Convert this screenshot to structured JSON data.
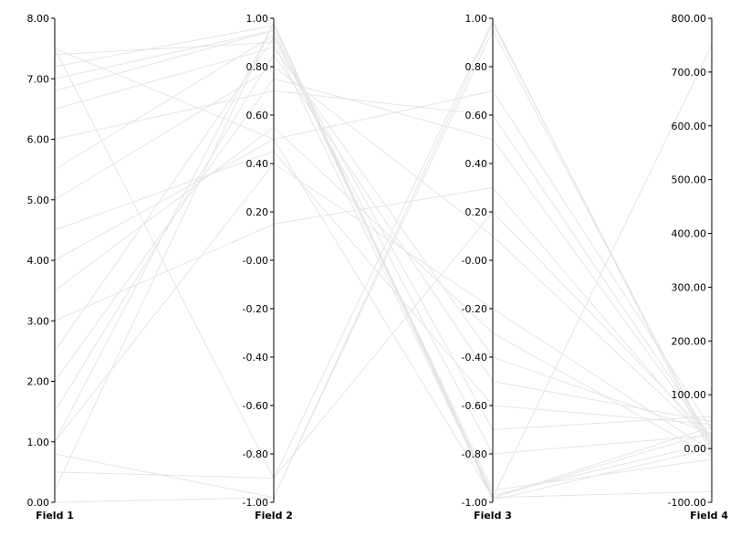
{
  "chart_data": {
    "type": "parallel-coordinates",
    "title": "",
    "line_color": "#e4e4e4",
    "axis_color": "#000000",
    "axes": [
      {
        "name": "Field 1",
        "range": [
          0,
          8
        ],
        "ticks": [
          "0.00",
          "1.00",
          "2.00",
          "3.00",
          "4.00",
          "5.00",
          "6.00",
          "7.00",
          "8.00"
        ]
      },
      {
        "name": "Field 2",
        "range": [
          -1,
          1
        ],
        "ticks": [
          "-1.00",
          "-0.80",
          "-0.60",
          "-0.40",
          "-0.20",
          "-0.00",
          "0.20",
          "0.40",
          "0.60",
          "0.80",
          "1.00"
        ]
      },
      {
        "name": "Field 3",
        "range": [
          -1,
          1
        ],
        "ticks": [
          "-1.00",
          "-0.80",
          "-0.60",
          "-0.40",
          "-0.20",
          "-0.00",
          "0.20",
          "0.40",
          "0.60",
          "0.80",
          "1.00"
        ]
      },
      {
        "name": "Field 4",
        "range": [
          -100,
          800
        ],
        "ticks": [
          "-100.00",
          "0.00",
          "100.00",
          "200.00",
          "300.00",
          "400.00",
          "500.00",
          "600.00",
          "700.00",
          "800.00"
        ]
      }
    ],
    "series": [
      {
        "values": [
          0.0,
          -0.98,
          0.98,
          0
        ]
      },
      {
        "values": [
          7.5,
          0.5,
          -0.98,
          750
        ]
      },
      {
        "values": [
          7.4,
          0.9,
          -0.98,
          -80
        ]
      },
      {
        "values": [
          0.5,
          -0.9,
          0.2,
          20
        ]
      },
      {
        "values": [
          7.0,
          0.95,
          -0.98,
          30
        ]
      },
      {
        "values": [
          0.2,
          0.98,
          -0.98,
          40
        ]
      },
      {
        "values": [
          7.2,
          0.97,
          -0.97,
          10
        ]
      },
      {
        "values": [
          1.0,
          0.98,
          -0.99,
          0
        ]
      },
      {
        "values": [
          6.8,
          0.95,
          -0.95,
          -20
        ]
      },
      {
        "values": [
          0.8,
          -0.98,
          0.95,
          5
        ]
      },
      {
        "values": [
          7.5,
          -0.9,
          0.99,
          -10
        ]
      },
      {
        "values": [
          1.0,
          0.4,
          -0.2,
          -5
        ]
      },
      {
        "values": [
          1.5,
          0.85,
          -0.5,
          50
        ]
      },
      {
        "values": [
          2.0,
          0.75,
          0.5,
          15
        ]
      },
      {
        "values": [
          2.5,
          0.92,
          -0.8,
          25
        ]
      },
      {
        "values": [
          3.0,
          0.15,
          0.3,
          8
        ]
      },
      {
        "values": [
          3.5,
          0.55,
          -0.3,
          -15
        ]
      },
      {
        "values": [
          4.0,
          0.5,
          0.7,
          35
        ]
      },
      {
        "values": [
          4.5,
          0.45,
          -0.6,
          45
        ]
      },
      {
        "values": [
          5.0,
          0.8,
          0.1,
          12
        ]
      },
      {
        "values": [
          5.5,
          0.93,
          -0.7,
          60
        ]
      },
      {
        "values": [
          6.0,
          0.7,
          0.6,
          18
        ]
      },
      {
        "values": [
          6.5,
          0.88,
          -0.4,
          28
        ]
      }
    ]
  }
}
